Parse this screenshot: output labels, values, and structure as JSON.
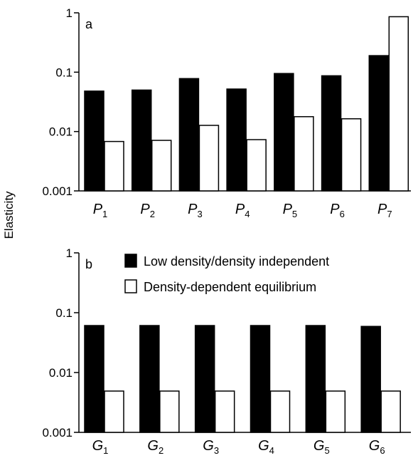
{
  "ylabel": "Elasticity",
  "legend": [
    {
      "label": "Low density/density independent",
      "color": "#000000"
    },
    {
      "label": "Density-dependent equilibrium",
      "color": "#ffffff"
    }
  ],
  "chart_data": [
    {
      "type": "bar",
      "panel_label": "a",
      "scale": "log",
      "ylim": [
        0.001,
        1
      ],
      "yticks": [
        "1",
        "0.1",
        "0.01",
        "0.001"
      ],
      "categories": [
        {
          "base": "P",
          "sub": "1"
        },
        {
          "base": "P",
          "sub": "2"
        },
        {
          "base": "P",
          "sub": "3"
        },
        {
          "base": "P",
          "sub": "4"
        },
        {
          "base": "P",
          "sub": "5"
        },
        {
          "base": "P",
          "sub": "6"
        },
        {
          "base": "P",
          "sub": "7"
        }
      ],
      "series": [
        {
          "name": "Low density/density independent",
          "values": [
            0.048,
            0.05,
            0.078,
            0.052,
            0.095,
            0.087,
            0.19
          ]
        },
        {
          "name": "Density-dependent equilibrium",
          "values": [
            0.0068,
            0.0071,
            0.0127,
            0.0073,
            0.0178,
            0.0164,
            0.86
          ]
        }
      ]
    },
    {
      "type": "bar",
      "panel_label": "b",
      "scale": "log",
      "ylim": [
        0.001,
        1
      ],
      "yticks": [
        "1",
        "0.1",
        "0.01",
        "0.001"
      ],
      "categories": [
        {
          "base": "G",
          "sub": "1"
        },
        {
          "base": "G",
          "sub": "2"
        },
        {
          "base": "G",
          "sub": "3"
        },
        {
          "base": "G",
          "sub": "4"
        },
        {
          "base": "G",
          "sub": "5"
        },
        {
          "base": "G",
          "sub": "6"
        }
      ],
      "series": [
        {
          "name": "Low density/density independent",
          "values": [
            0.061,
            0.061,
            0.061,
            0.061,
            0.061,
            0.059
          ]
        },
        {
          "name": "Density-dependent equilibrium",
          "values": [
            0.0049,
            0.0049,
            0.0049,
            0.0049,
            0.0049,
            0.0049
          ]
        }
      ]
    }
  ]
}
